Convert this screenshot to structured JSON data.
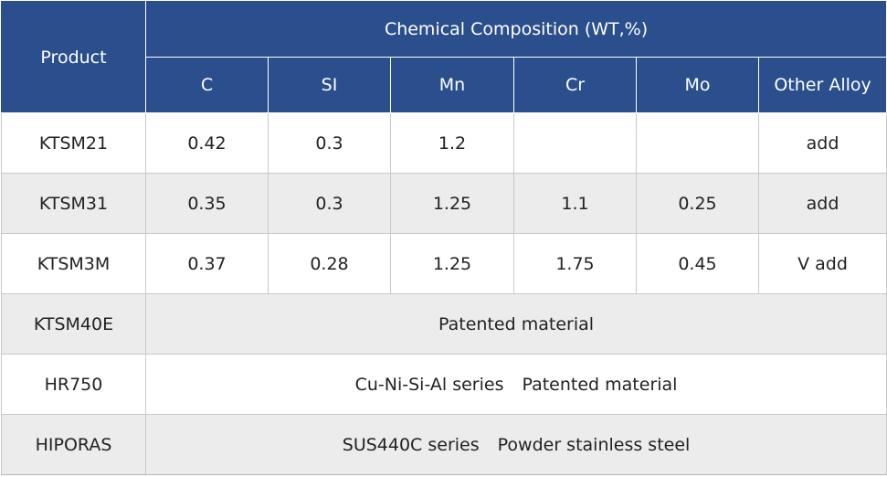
{
  "table": {
    "header": {
      "product": "Product",
      "group_title": "Chemical Composition (WT,%)",
      "elements": [
        "C",
        "SI",
        "Mn",
        "Cr",
        "Mo",
        "Other Alloy"
      ]
    },
    "rows": [
      {
        "product": "KTSM21",
        "c": "0.42",
        "si": "0.3",
        "mn": "1.2",
        "cr": "",
        "mo": "",
        "other": "add"
      },
      {
        "product": "KTSM31",
        "c": "0.35",
        "si": "0.3",
        "mn": "1.25",
        "cr": "1.1",
        "mo": "0.25",
        "other": "add"
      },
      {
        "product": "KTSM3M",
        "c": "0.37",
        "si": "0.28",
        "mn": "1.25",
        "cr": "1.75",
        "mo": "0.45",
        "other": "V add"
      }
    ],
    "merged_rows": [
      {
        "product": "KTSM40E",
        "parts": [
          "Patented material"
        ]
      },
      {
        "product": "HR750",
        "parts": [
          "Cu-Ni-Si-Al series",
          "Patented material"
        ]
      },
      {
        "product": "HIPORAS",
        "parts": [
          "SUS440C series",
          "Powder stainless steel"
        ]
      }
    ]
  },
  "colors": {
    "header_bg": "#2b4f8c",
    "header_text": "#ffffff",
    "alt_row_bg": "#ececec",
    "grid": "#c9c9c9"
  }
}
